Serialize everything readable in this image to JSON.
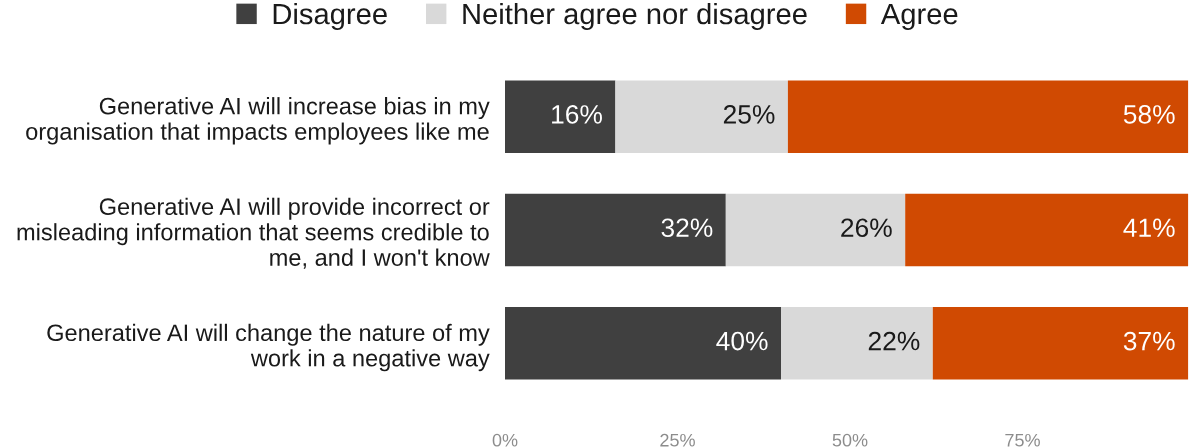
{
  "chart_data": {
    "type": "bar",
    "orientation": "horizontal",
    "stacked": true,
    "categories": [
      "Generative AI will increase bias in my\norganisation that impacts employees like me",
      "Generative AI will provide incorrect or\nmisleading information that seems credible to\nme, and I won't know",
      "Generative AI will change the nature of my\nwork in a negative way"
    ],
    "series": [
      {
        "name": "Disagree",
        "color": "#404040",
        "values": [
          16,
          32,
          40
        ],
        "value_labels": [
          "16%",
          "32%",
          "40%"
        ]
      },
      {
        "name": "Neither agree nor disagree",
        "color": "#d9d9d9",
        "values": [
          25,
          26,
          22
        ],
        "value_labels": [
          "25%",
          "26%",
          "22%"
        ]
      },
      {
        "name": "Agree",
        "color": "#d04a02",
        "values": [
          58,
          41,
          37
        ],
        "value_labels": [
          "58%",
          "41%",
          "37%"
        ]
      }
    ],
    "xlim": [
      0,
      100
    ],
    "xticks": [
      {
        "value": 0,
        "label": "0%"
      },
      {
        "value": 25,
        "label": "25%"
      },
      {
        "value": 50,
        "label": "50%"
      },
      {
        "value": 75,
        "label": "75%"
      }
    ],
    "legend": "top",
    "grid": false
  }
}
